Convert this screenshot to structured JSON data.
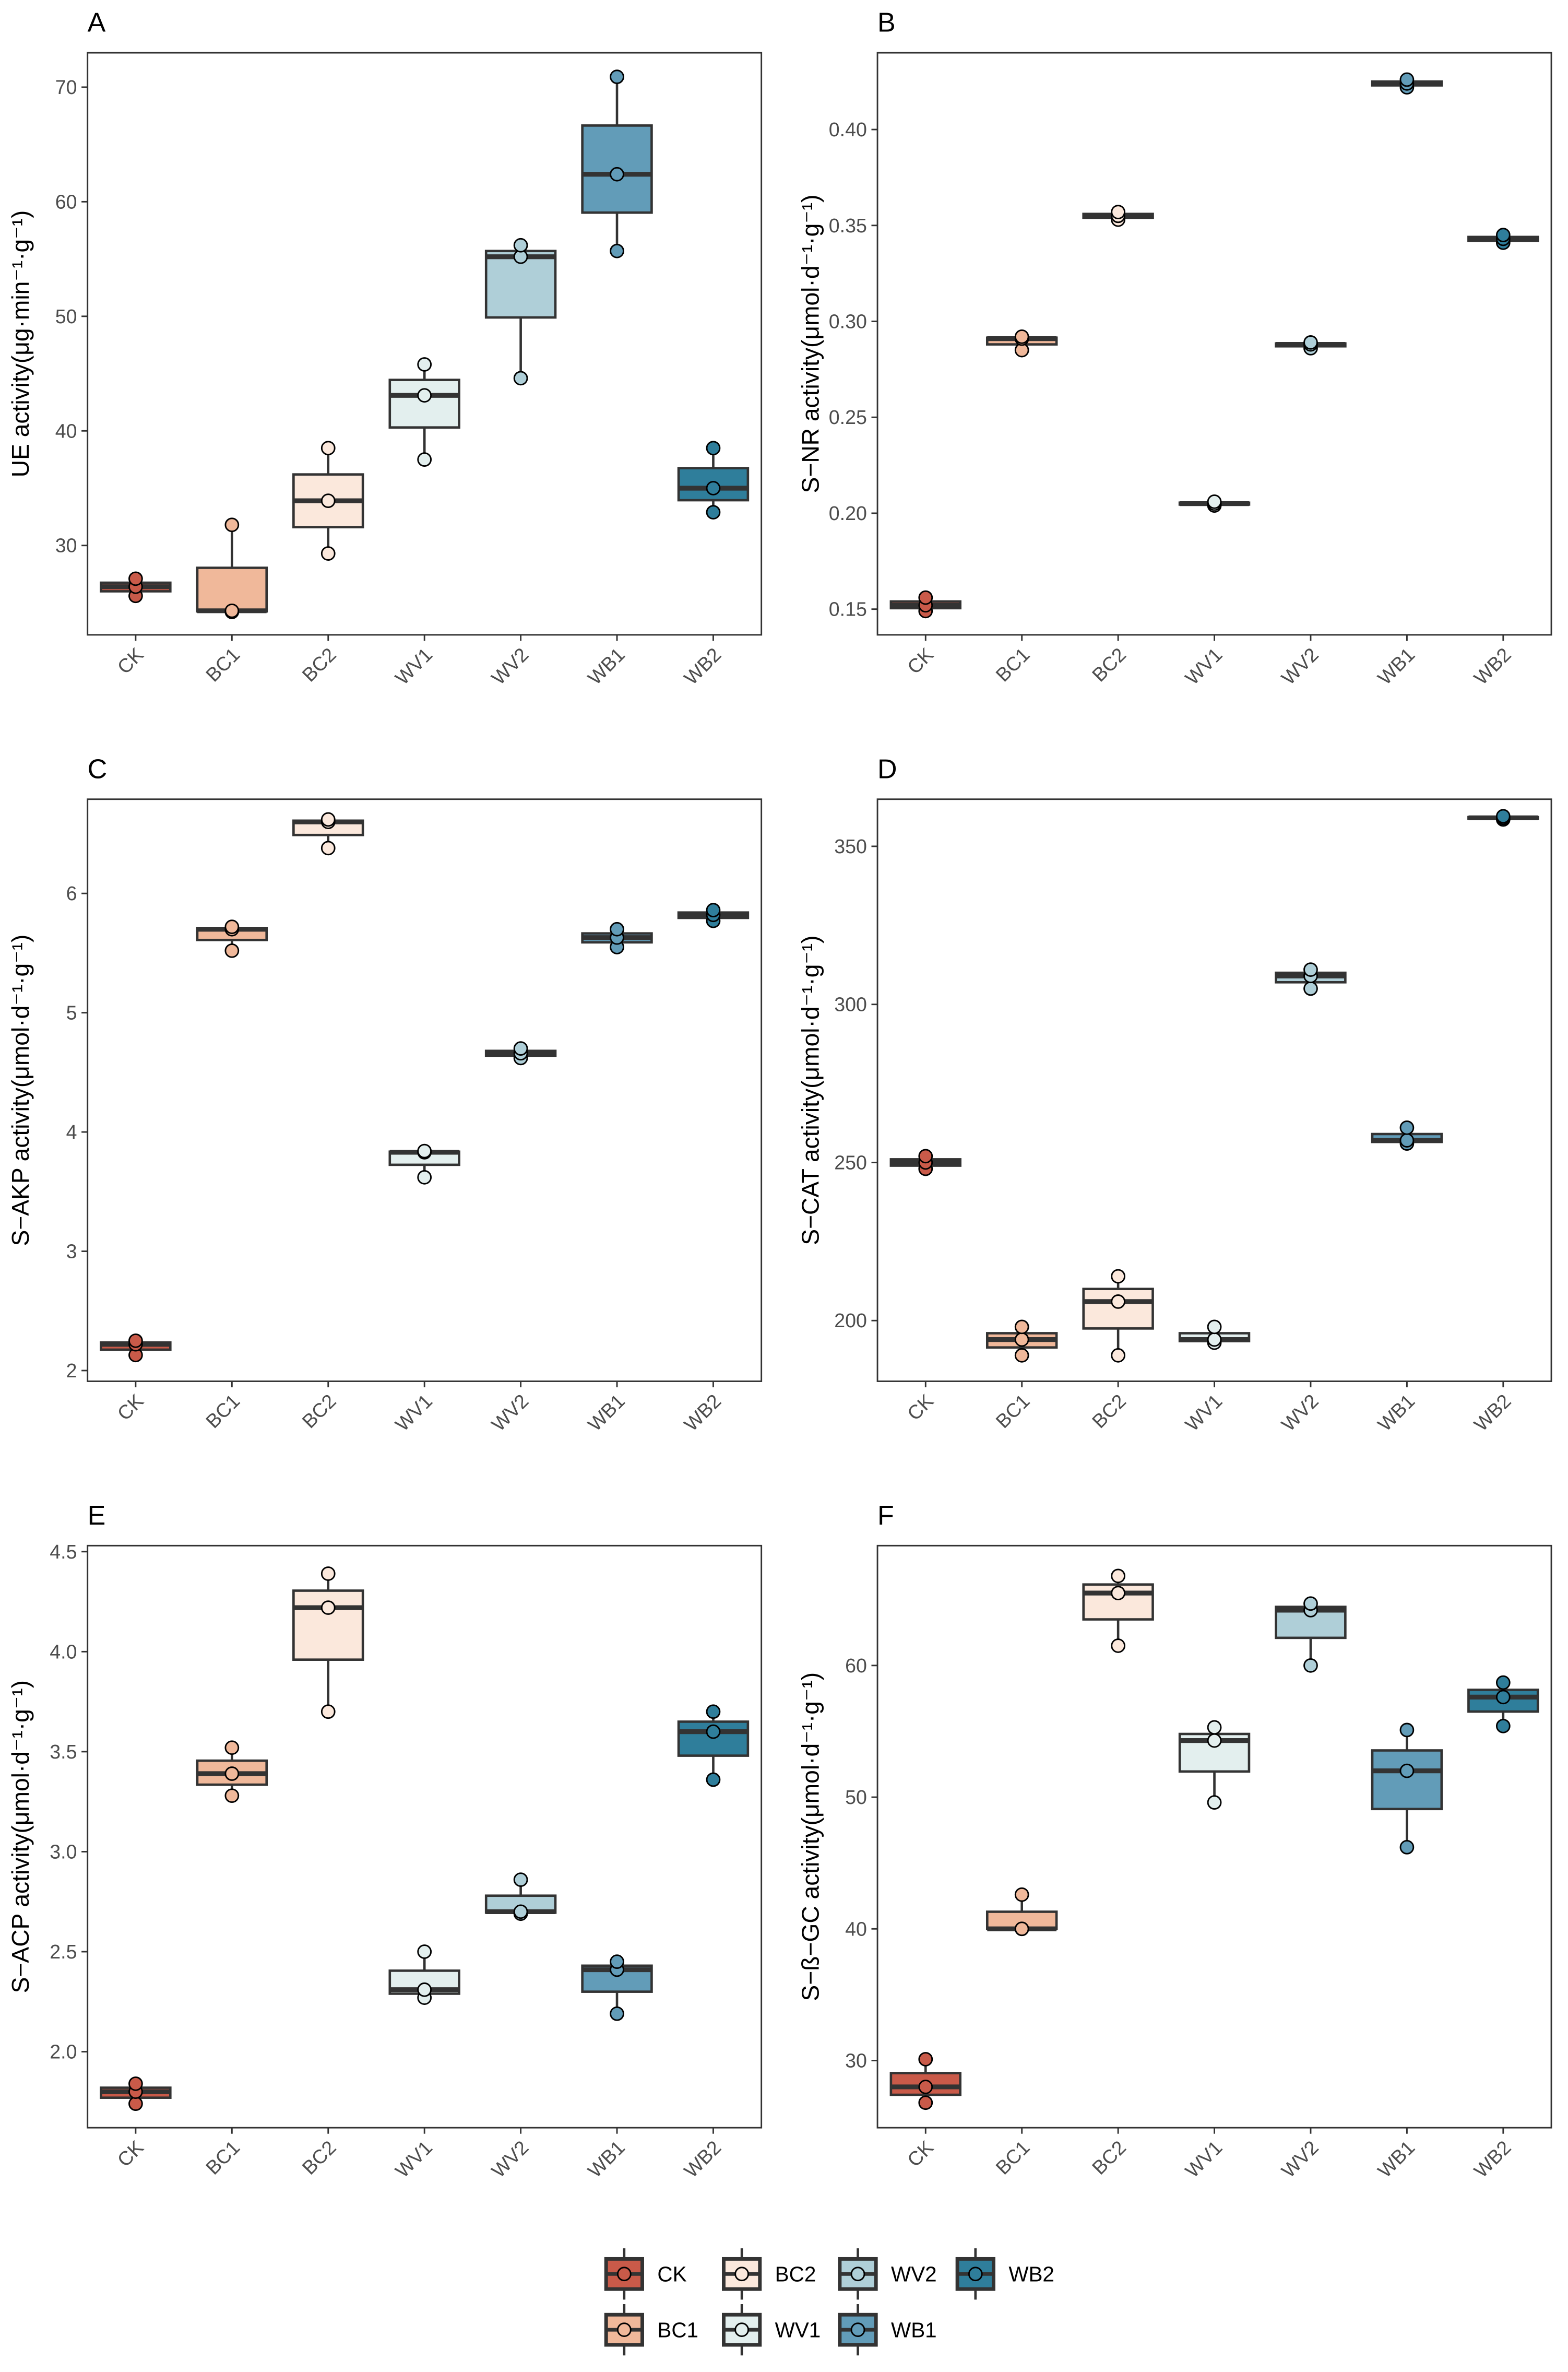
{
  "chart_data": {
    "type": "boxplot",
    "categories": [
      "CK",
      "BC1",
      "BC2",
      "WV1",
      "WV2",
      "WB1",
      "WB2"
    ],
    "colors": {
      "CK": "#C95A49",
      "BC1": "#F0B89A",
      "BC2": "#FBE8DC",
      "WV1": "#E3EFEE",
      "WV2": "#AFCFD8",
      "WB1": "#629CB8",
      "WB2": "#2F7E9B"
    },
    "legend": {
      "position": "bottom",
      "entries": [
        "CK",
        "BC2",
        "WV2",
        "WB2",
        "BC1",
        "WV1",
        "WB1"
      ]
    },
    "panels": [
      {
        "letter": "A",
        "ylabel": "UE activity(μg·min⁻¹·g⁻¹)",
        "ylim": [
          22.2,
          73.0
        ],
        "ticks": [
          30,
          40,
          50,
          60,
          70
        ],
        "tick_labels": [
          "30",
          "40",
          "50",
          "60",
          "70"
        ],
        "points": {
          "CK": [
            25.6,
            26.4,
            27.1
          ],
          "BC1": [
            24.2,
            24.3,
            31.8
          ],
          "BC2": [
            29.3,
            33.9,
            38.5
          ],
          "WV1": [
            37.5,
            43.1,
            45.8
          ],
          "WV2": [
            44.6,
            55.2,
            56.2
          ],
          "WB1": [
            55.7,
            62.4,
            70.9
          ],
          "WB2": [
            32.9,
            35.0,
            38.5
          ]
        }
      },
      {
        "letter": "B",
        "ylabel": "S−NR activity(μmol·d⁻¹·g⁻¹)",
        "ylim": [
          0.1366,
          0.44
        ],
        "ticks": [
          0.15,
          0.2,
          0.25,
          0.3,
          0.35,
          0.4
        ],
        "tick_labels": [
          "0.15",
          "0.20",
          "0.25",
          "0.30",
          "0.35",
          "0.40"
        ],
        "points": {
          "CK": [
            0.149,
            0.152,
            0.156
          ],
          "BC1": [
            0.285,
            0.291,
            0.292
          ],
          "BC2": [
            0.353,
            0.355,
            0.357
          ],
          "WV1": [
            0.204,
            0.205,
            0.206
          ],
          "WV2": [
            0.286,
            0.288,
            0.289
          ],
          "WB1": [
            0.422,
            0.424,
            0.426
          ],
          "WB2": [
            0.341,
            0.343,
            0.345
          ]
        }
      },
      {
        "letter": "C",
        "ylabel": "S−AKP activity(μmol·d⁻¹·g⁻¹)",
        "ylim": [
          1.91,
          6.79
        ],
        "ticks": [
          2,
          3,
          4,
          5,
          6
        ],
        "tick_labels": [
          "2",
          "3",
          "4",
          "5",
          "6"
        ],
        "points": {
          "CK": [
            2.13,
            2.22,
            2.25
          ],
          "BC1": [
            5.52,
            5.7,
            5.72
          ],
          "BC2": [
            6.38,
            6.6,
            6.62
          ],
          "WV1": [
            3.62,
            3.83,
            3.84
          ],
          "WV2": [
            4.62,
            4.66,
            4.7
          ],
          "WB1": [
            5.55,
            5.63,
            5.7
          ],
          "WB2": [
            5.77,
            5.82,
            5.86
          ]
        }
      },
      {
        "letter": "D",
        "ylabel": "S−CAT activity(μmol·d⁻¹·g⁻¹)",
        "ylim": [
          180.8,
          364.9
        ],
        "ticks": [
          200,
          250,
          300,
          350
        ],
        "tick_labels": [
          "200",
          "250",
          "300",
          "350"
        ],
        "points": {
          "CK": [
            248,
            250,
            252
          ],
          "BC1": [
            189,
            194,
            198
          ],
          "BC2": [
            189,
            206,
            214
          ],
          "WV1": [
            193,
            194,
            198
          ],
          "WV2": [
            305,
            309,
            311
          ],
          "WB1": [
            256,
            257,
            261
          ],
          "WB2": [
            358.5,
            359,
            359.5
          ]
        }
      },
      {
        "letter": "E",
        "ylabel": "S−ACP activity(μmol·d⁻¹·g⁻¹)",
        "ylim": [
          1.62,
          4.53
        ],
        "ticks": [
          2,
          2.5,
          3,
          3.5,
          4,
          4.5
        ],
        "tick_labels": [
          "2.0",
          "2.5",
          "3.0",
          "3.5",
          "4.0",
          "4.5"
        ],
        "points": {
          "CK": [
            1.74,
            1.8,
            1.84
          ],
          "BC1": [
            3.28,
            3.39,
            3.52
          ],
          "BC2": [
            3.7,
            4.22,
            4.39
          ],
          "WV1": [
            2.27,
            2.31,
            2.5
          ],
          "WV2": [
            2.69,
            2.7,
            2.86
          ],
          "WB1": [
            2.19,
            2.41,
            2.45
          ],
          "WB2": [
            3.36,
            3.6,
            3.7
          ]
        }
      },
      {
        "letter": "F",
        "ylabel": "S−ß−GC activity(μmol·d⁻¹·g⁻¹)",
        "ylim": [
          24.9,
          69.1
        ],
        "ticks": [
          30,
          40,
          50,
          60
        ],
        "tick_labels": [
          "30",
          "40",
          "50",
          "60"
        ],
        "points": {
          "CK": [
            26.8,
            28.0,
            30.1
          ],
          "BC1": [
            40.0,
            40.0,
            42.6
          ],
          "BC2": [
            61.5,
            65.5,
            66.8
          ],
          "WV1": [
            49.6,
            54.3,
            55.3
          ],
          "WV2": [
            60.0,
            64.2,
            64.7
          ],
          "WB1": [
            46.2,
            52.0,
            55.1
          ],
          "WB2": [
            55.4,
            57.6,
            58.7
          ]
        }
      }
    ]
  }
}
